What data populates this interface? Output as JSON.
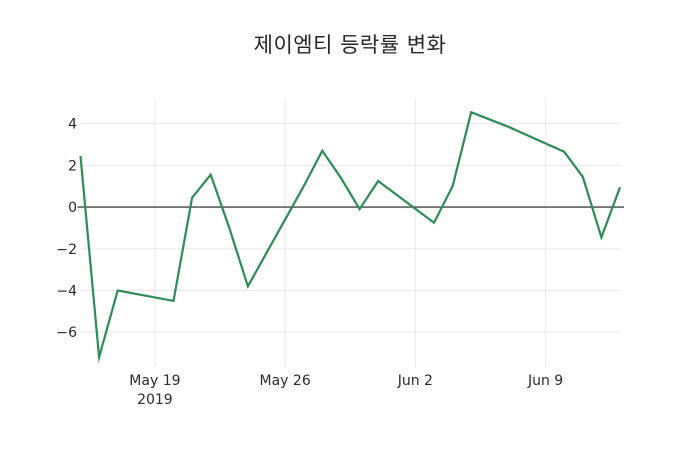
{
  "chart_data": {
    "type": "line",
    "title": "제이엠티 등락률 변화",
    "xlabel": "",
    "ylabel": "",
    "legend": false,
    "grid": true,
    "zeroline": true,
    "xlim_dates": [
      "2019-05-15",
      "2019-06-13"
    ],
    "ylim": [
      -7.67,
      5.23
    ],
    "series": [
      {
        "name": "제이엠티 등락률",
        "dates": [
          "2019-05-15",
          "2019-05-16",
          "2019-05-17",
          "2019-05-20",
          "2019-05-21",
          "2019-05-22",
          "2019-05-23",
          "2019-05-24",
          "2019-05-27",
          "2019-05-28",
          "2019-05-29",
          "2019-05-30",
          "2019-05-31",
          "2019-06-03",
          "2019-06-04",
          "2019-06-05",
          "2019-06-07",
          "2019-06-10",
          "2019-06-11",
          "2019-06-12",
          "2019-06-13"
        ],
        "values": [
          2.45,
          -7.2,
          -4.0,
          -4.5,
          0.45,
          1.55,
          -1.0,
          -3.8,
          1.0,
          2.7,
          1.4,
          -0.1,
          1.25,
          -0.75,
          1.0,
          4.55,
          3.85,
          2.65,
          1.45,
          -1.45,
          0.95
        ]
      }
    ],
    "x_ticks": [
      {
        "label": "May 19",
        "sublabel": "2019",
        "date": "2019-05-19"
      },
      {
        "label": "May 26",
        "sublabel": "",
        "date": "2019-05-26"
      },
      {
        "label": "Jun 2",
        "sublabel": "",
        "date": "2019-06-02"
      },
      {
        "label": "Jun 9",
        "sublabel": "",
        "date": "2019-06-09"
      }
    ],
    "y_ticks": [
      {
        "label": "4",
        "value": 4
      },
      {
        "label": "2",
        "value": 2
      },
      {
        "label": "0",
        "value": 0
      },
      {
        "label": "−2",
        "value": -2
      },
      {
        "label": "−4",
        "value": -4
      },
      {
        "label": "−6",
        "value": -6
      }
    ],
    "colors": {
      "line": "#2E8B57",
      "grid": "#e8e8e8",
      "zeroline": "#444444",
      "text": "#2a2a2f",
      "background": "#ffffff"
    }
  }
}
